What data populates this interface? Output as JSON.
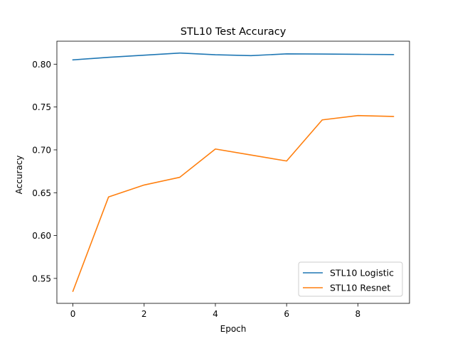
{
  "chart_data": {
    "type": "line",
    "title": "STL10 Test Accuracy",
    "xlabel": "Epoch",
    "ylabel": "Accuracy",
    "x": [
      0,
      1,
      2,
      3,
      4,
      5,
      6,
      7,
      8,
      9
    ],
    "xlim": [
      -0.45,
      9.45
    ],
    "ylim": [
      0.5209,
      0.8268
    ],
    "xticks": [
      0,
      2,
      4,
      6,
      8
    ],
    "yticks": [
      0.55,
      0.6,
      0.65,
      0.7,
      0.75,
      0.8
    ],
    "ytick_labels": [
      "0.55",
      "0.60",
      "0.65",
      "0.70",
      "0.75",
      "0.80"
    ],
    "grid": false,
    "legend_position": "lower-right",
    "series": [
      {
        "name": "STL10 Logistic",
        "color": "#1f77b4",
        "values": [
          0.805,
          0.808,
          0.8105,
          0.813,
          0.811,
          0.81,
          0.812,
          0.8118,
          0.8115,
          0.8112
        ]
      },
      {
        "name": "STL10 Resnet",
        "color": "#ff7f0e",
        "values": [
          0.535,
          0.645,
          0.659,
          0.668,
          0.701,
          0.694,
          0.687,
          0.735,
          0.74,
          0.739
        ]
      }
    ]
  }
}
